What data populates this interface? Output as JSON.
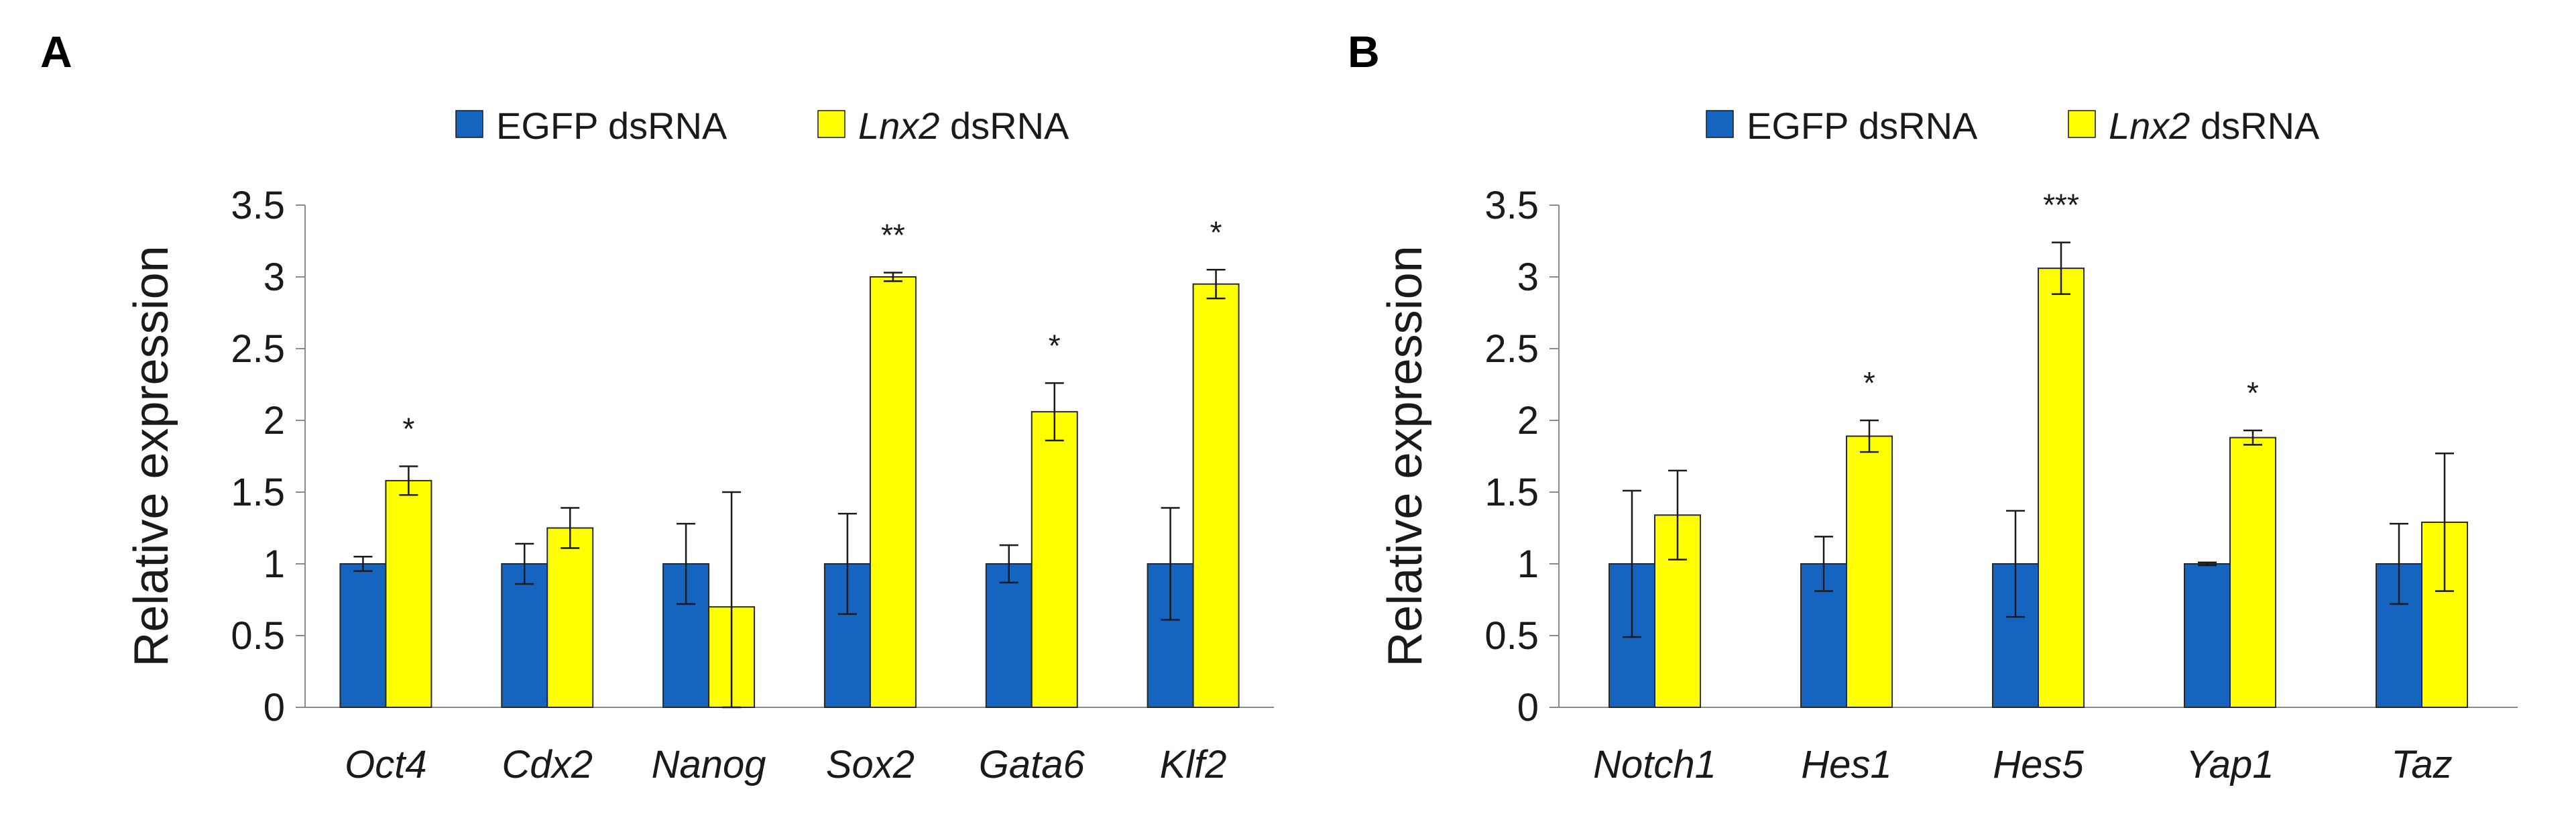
{
  "series_colors": {
    "EGFP dsRNA": "#1565c0",
    "Lnx2 dsRNA": "#ffff00"
  },
  "chart_data": [
    {
      "type": "bar",
      "panel": "A",
      "ylabel": "Relative expression",
      "ylim": [
        0,
        3.5
      ],
      "yticks": [
        "0",
        "0.5",
        "1",
        "1.5",
        "2",
        "2.5",
        "3",
        "3.5"
      ],
      "legend": [
        {
          "gene": "",
          "suffix": "EGFP dsRNA"
        },
        {
          "gene": "Lnx2",
          "suffix": " dsRNA"
        }
      ],
      "categories": [
        "Oct4",
        "Cdx2",
        "Nanog",
        "Sox2",
        "Gata6",
        "Klf2"
      ],
      "series": [
        {
          "name": "EGFP dsRNA",
          "values": [
            1.0,
            1.0,
            1.0,
            1.0,
            1.0,
            1.0
          ],
          "errors": [
            0.05,
            0.14,
            0.28,
            0.35,
            0.13,
            0.39
          ]
        },
        {
          "name": "Lnx2 dsRNA",
          "values": [
            1.58,
            1.25,
            0.7,
            3.0,
            2.06,
            2.95
          ],
          "errors": [
            0.1,
            0.14,
            0.8,
            0.03,
            0.2,
            0.1
          ]
        }
      ],
      "significance": [
        "*",
        "",
        "",
        "**",
        "*",
        "*"
      ]
    },
    {
      "type": "bar",
      "panel": "B",
      "ylabel": "Relative expression",
      "ylim": [
        0,
        3.5
      ],
      "yticks": [
        "0",
        "0.5",
        "1",
        "1.5",
        "2",
        "2.5",
        "3",
        "3.5"
      ],
      "legend": [
        {
          "gene": "",
          "suffix": "EGFP dsRNA"
        },
        {
          "gene": "Lnx2",
          "suffix": " dsRNA"
        }
      ],
      "categories": [
        "Notch1",
        "Hes1",
        "Hes5",
        "Yap1",
        "Taz"
      ],
      "series": [
        {
          "name": "EGFP dsRNA",
          "values": [
            1.0,
            1.0,
            1.0,
            1.0,
            1.0
          ],
          "errors": [
            0.51,
            0.19,
            0.37,
            0.01,
            0.28
          ]
        },
        {
          "name": "Lnx2 dsRNA",
          "values": [
            1.34,
            1.89,
            3.06,
            1.88,
            1.29
          ],
          "errors": [
            0.31,
            0.11,
            0.18,
            0.05,
            0.48
          ]
        }
      ],
      "significance": [
        "",
        "*",
        "***",
        "*",
        ""
      ]
    }
  ]
}
